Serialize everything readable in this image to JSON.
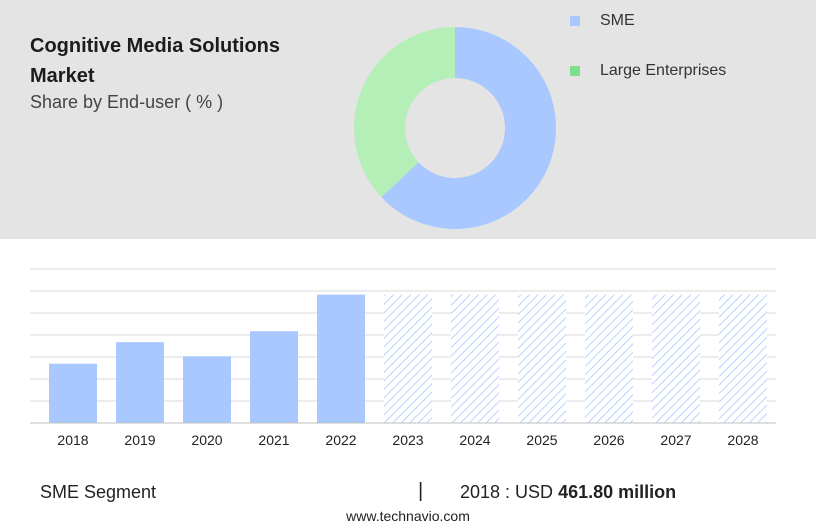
{
  "header": {
    "title": "Cognitive Media Solutions Market",
    "subtitle": "Share by End-user ( % )"
  },
  "legend": {
    "items": [
      {
        "label": "SME",
        "color": "#a8c8ff"
      },
      {
        "label": "Large Enterprises",
        "color": "#7ee08f"
      }
    ]
  },
  "footer": {
    "segment": "SME Segment",
    "separator": "|",
    "year_label": "2018 : USD",
    "value": "461.80 million",
    "url": "www.technavio.com"
  },
  "chart_data": [
    {
      "type": "pie",
      "variant": "donut",
      "labels": [
        "SME",
        "Large Enterprises"
      ],
      "values": [
        63,
        37
      ],
      "colors": [
        "#a8c8ff",
        "#b5efb8"
      ]
    },
    {
      "type": "bar",
      "categories": [
        "2018",
        "2019",
        "2020",
        "2021",
        "2022",
        "2023",
        "2024",
        "2025",
        "2026",
        "2027",
        "2028"
      ],
      "values": [
        461.8,
        630,
        520,
        715,
        1000,
        1000,
        1000,
        1000,
        1000,
        1000,
        1000
      ],
      "forecast_from": "2023",
      "bar_color": "#a8c8ff",
      "forecast_style": "hatched",
      "ylim": [
        0,
        1200
      ],
      "grid": true
    }
  ]
}
